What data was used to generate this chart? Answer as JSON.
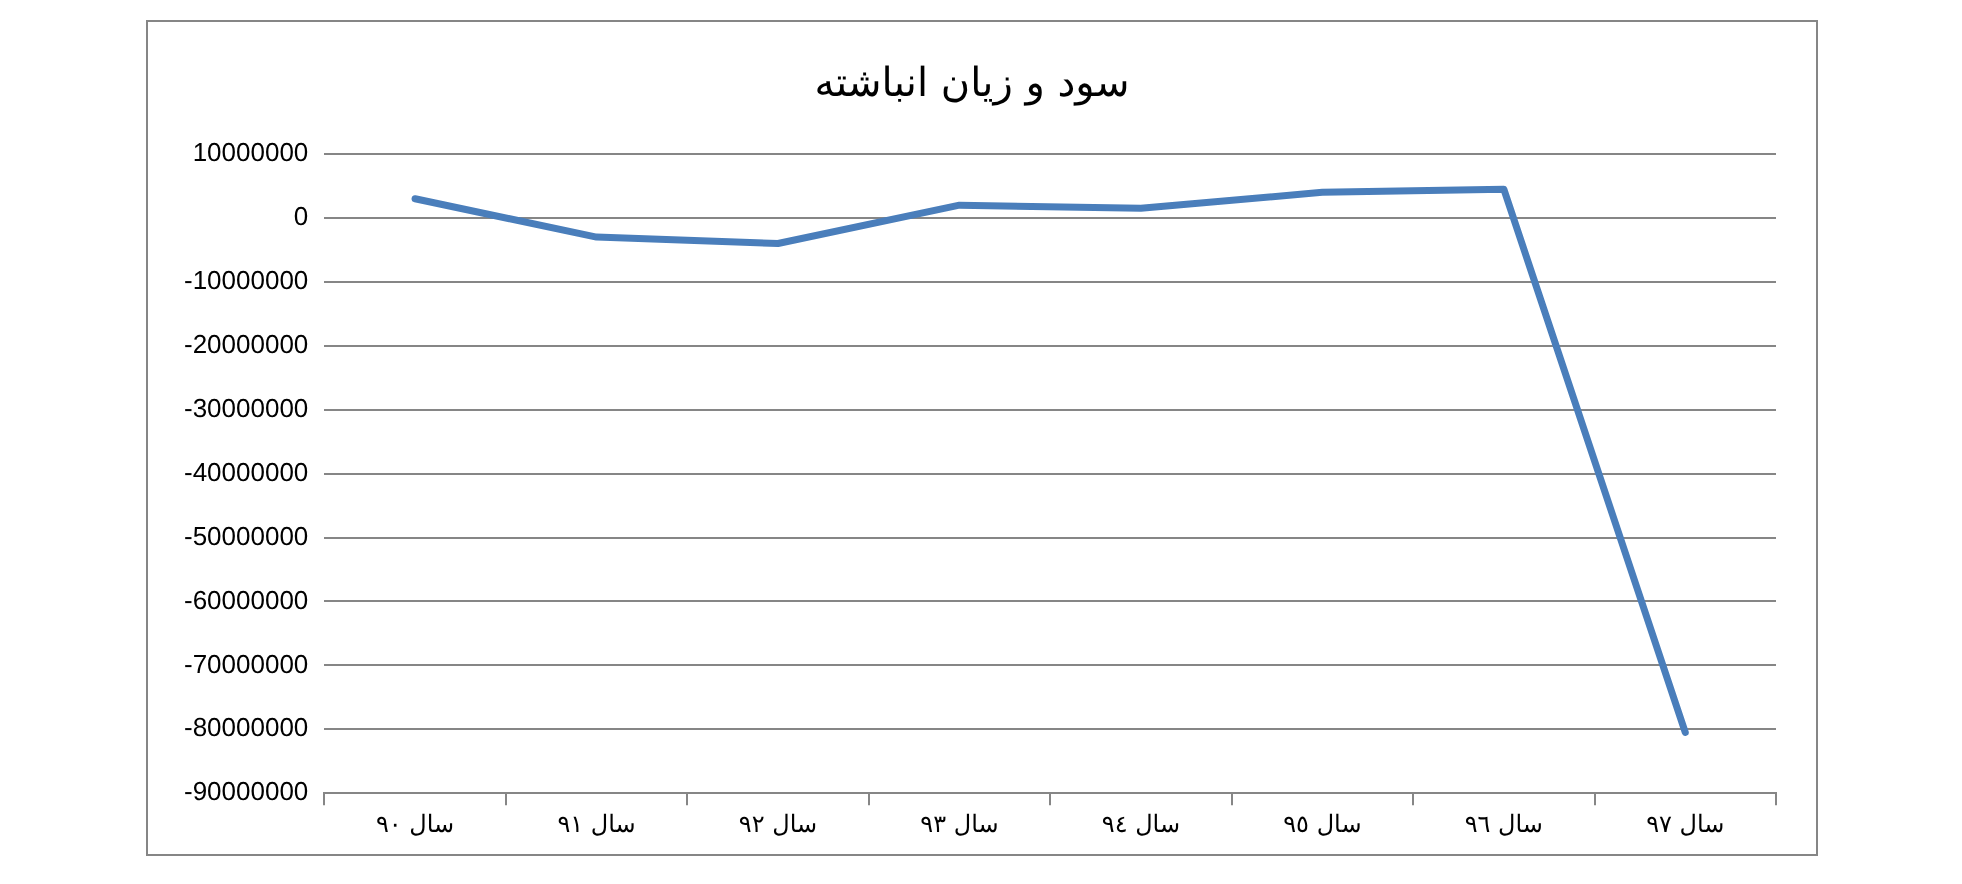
{
  "chart_data": {
    "type": "line",
    "title": "سود و زیان انباشته",
    "categories": [
      "سال ٩٠",
      "سال ٩١",
      "سال ٩٢",
      "سال ٩٣",
      "سال ٩٤",
      "سال ٩٥",
      "سال ٩٦",
      "سال ٩٧"
    ],
    "series": [
      {
        "color": "#4a7ebb",
        "values": [
          3000000,
          -3000000,
          -4000000,
          2000000,
          1500000,
          4000000,
          4500000,
          -80500000
        ]
      }
    ],
    "ylim": [
      -90000000,
      10000000
    ],
    "yticks": [
      -90000000,
      -80000000,
      -70000000,
      -60000000,
      -50000000,
      -40000000,
      -30000000,
      -20000000,
      -10000000,
      0,
      10000000
    ],
    "grid": "y",
    "legend": false,
    "marker": "none",
    "line_style": "solid"
  }
}
